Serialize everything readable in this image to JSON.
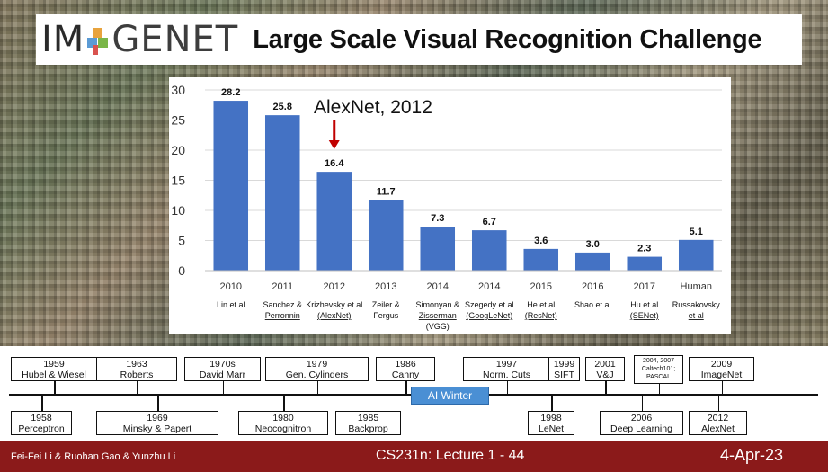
{
  "title": {
    "logo_im": "IM",
    "logo_genet": "GENET",
    "headline": "Large Scale Visual Recognition Challenge"
  },
  "annotation": "AlexNet, 2012",
  "colors": {
    "bar": "#4472c4",
    "arrow": "#c00000",
    "footer": "#8b1a1a",
    "ai_winter": "#4a8fd4"
  },
  "chart_data": {
    "type": "bar",
    "ylim": [
      0,
      30
    ],
    "yticks": [
      "0",
      "5",
      "10",
      "15",
      "20",
      "25",
      "30"
    ],
    "grid": true,
    "categories": [
      {
        "year": "2010",
        "label": [
          "Lin et al"
        ],
        "underline": false
      },
      {
        "year": "2011",
        "label": [
          "Sanchez &",
          "Perronnin"
        ],
        "underline": true
      },
      {
        "year": "2012",
        "label": [
          "Krizhevsky et al",
          "(AlexNet)"
        ],
        "underline": true
      },
      {
        "year": "2013",
        "label": [
          "Zeiler &",
          "Fergus"
        ],
        "underline": false
      },
      {
        "year": "2014",
        "label": [
          "Simonyan &",
          "Zisserman",
          "(VGG)"
        ],
        "underline": true
      },
      {
        "year": "2014",
        "label": [
          "Szegedy et al",
          "(GoogLeNet)"
        ],
        "underline": true
      },
      {
        "year": "2015",
        "label": [
          "He et al",
          "(ResNet)"
        ],
        "underline": true
      },
      {
        "year": "2016",
        "label": [
          "Shao et al"
        ],
        "underline": false
      },
      {
        "year": "2017",
        "label": [
          "Hu et al",
          "(SENet)"
        ],
        "underline": true
      },
      {
        "year": "Human",
        "label": [
          "Russakovsky",
          "et al"
        ],
        "underline": true
      }
    ],
    "values": [
      28.2,
      25.8,
      16.4,
      11.7,
      7.3,
      6.7,
      3.6,
      3.0,
      2.3,
      5.1
    ],
    "value_labels": [
      "28.2",
      "25.8",
      "16.4",
      "11.7",
      "7.3",
      "6.7",
      "3.6",
      "3.0",
      "2.3",
      "5.1"
    ]
  },
  "timeline": {
    "label": "AI Winter",
    "top": [
      {
        "year": "1959",
        "name": "Hubel & Wiesel"
      },
      {
        "year": "1963",
        "name": "Roberts"
      },
      {
        "year": "1970s",
        "name": "David Marr"
      },
      {
        "year": "1979",
        "name": "Gen. Cylinders"
      },
      {
        "year": "1986",
        "name": "Canny"
      },
      {
        "year": "1997",
        "name": "Norm. Cuts"
      },
      {
        "year": "1999",
        "name": "SIFT"
      },
      {
        "year": "2001",
        "name": "V&J"
      },
      {
        "year": "2004, 2007",
        "name": "Caltech101;",
        "extra": "PASCAL"
      },
      {
        "year": "2009",
        "name": "ImageNet"
      }
    ],
    "bottom": [
      {
        "year": "1958",
        "name": "Perceptron"
      },
      {
        "year": "1969",
        "name": "Minsky & Papert"
      },
      {
        "year": "1980",
        "name": "Neocognitron"
      },
      {
        "year": "1985",
        "name": "Backprop"
      },
      {
        "year": "1998",
        "name": "LeNet"
      },
      {
        "year": "2006",
        "name": "Deep Learning"
      },
      {
        "year": "2012",
        "name": "AlexNet"
      }
    ]
  },
  "footer": {
    "authors": "Fei-Fei Li & Ruohan Gao & Yunzhu Li",
    "lecture": "CS231n: Lecture 1 -  44",
    "date": "4-Apr-23"
  }
}
